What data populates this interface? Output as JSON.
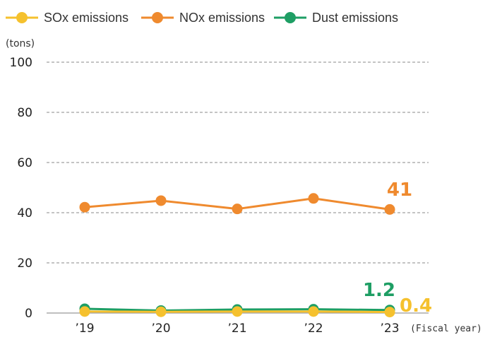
{
  "chart_data": {
    "type": "line",
    "ylabel": "(tons)",
    "xlabel": "(Fiscal year)",
    "ylim": [
      0,
      100
    ],
    "yticks": [
      "0",
      "20",
      "40",
      "60",
      "80",
      "100"
    ],
    "categories": [
      "’19",
      "’20",
      "’21",
      "’22",
      "’23"
    ],
    "grid": true,
    "legend_position": "top-left",
    "series": [
      {
        "name": "SOx emissions",
        "color": "#F5C12E",
        "values": [
          0.6,
          0.5,
          0.6,
          0.6,
          0.4
        ],
        "end_label": "0.4"
      },
      {
        "name": "NOx emissions",
        "color": "#EF8A2E",
        "values": [
          42.2,
          44.8,
          41.5,
          45.7,
          41.3
        ],
        "end_label": "41"
      },
      {
        "name": "Dust emissions",
        "color": "#1E9E64",
        "values": [
          1.7,
          1.0,
          1.4,
          1.5,
          1.2
        ],
        "end_label": "1.2"
      }
    ]
  }
}
